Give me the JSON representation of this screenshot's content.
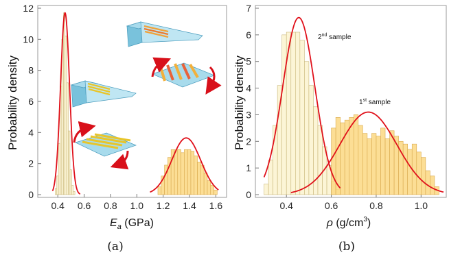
{
  "chart_data": [
    {
      "type": "bar",
      "panel_label": "(a)",
      "xlabel_main": "E",
      "xlabel_sub": "a",
      "xlabel_unit": " (GPa)",
      "ylabel": "Probability density",
      "xlim": [
        0.3,
        1.65
      ],
      "ylim": [
        0,
        12
      ],
      "xticks": [
        "0.4",
        "0.6",
        "0.8",
        "1.0",
        "1.2",
        "1.4",
        "1.6"
      ],
      "xtick_values": [
        0.4,
        0.6,
        0.8,
        1.0,
        1.2,
        1.4,
        1.6
      ],
      "yticks": [
        "0",
        "2",
        "4",
        "6",
        "8",
        "10",
        "12"
      ],
      "ytick_values": [
        0,
        2,
        4,
        6,
        8,
        10,
        12
      ],
      "series": [
        {
          "type": "histogram",
          "bin_width": 0.0125,
          "bin_start": [
            0.38,
            0.3925,
            0.405,
            0.4175,
            0.43,
            0.4425,
            0.455,
            0.4675,
            0.48,
            0.4925,
            0.505,
            0.5175
          ],
          "values": [
            0.4,
            1.2,
            3.3,
            7.0,
            10.0,
            11.7,
            10.2,
            7.2,
            4.1,
            1.6,
            0.6,
            0.2
          ],
          "fill": "#fbf3cf",
          "stroke": "#c9b77a"
        },
        {
          "type": "histogram",
          "bin_width": 0.025,
          "bin_start": [
            1.16,
            1.185,
            1.21,
            1.235,
            1.26,
            1.285,
            1.31,
            1.335,
            1.36,
            1.385,
            1.41,
            1.435,
            1.46,
            1.485,
            1.51,
            1.535,
            1.56,
            1.585
          ],
          "values": [
            0.5,
            1.2,
            1.9,
            2.4,
            2.9,
            2.9,
            2.9,
            2.7,
            2.9,
            2.9,
            2.8,
            2.5,
            2.1,
            1.9,
            1.4,
            0.9,
            0.6,
            0.3
          ],
          "fill": "#fcd883",
          "stroke": "#d9a94e"
        },
        {
          "type": "normal_curve",
          "mean": 0.455,
          "sd": 0.034,
          "peak": 11.7,
          "range": [
            0.36,
            0.57
          ],
          "color": "#e0101a"
        },
        {
          "type": "normal_curve",
          "mean": 1.375,
          "sd": 0.11,
          "peak": 3.65,
          "range": [
            1.1,
            1.62
          ],
          "color": "#e0101a"
        }
      ]
    },
    {
      "type": "bar",
      "panel_label": "(b)",
      "xlabel_main": "ρ",
      "xlabel_unit": " (g/cm",
      "xlabel_sup": "3",
      "xlabel_close": ")",
      "ylabel": "Probability density",
      "xlim": [
        0.28,
        1.1
      ],
      "ylim": [
        0,
        7
      ],
      "xticks": [
        "0.4",
        "0.6",
        "0.8",
        "1.0"
      ],
      "xtick_values": [
        0.4,
        0.6,
        0.8,
        1.0
      ],
      "yticks": [
        "0",
        "1",
        "2",
        "3",
        "4",
        "5",
        "6",
        "7"
      ],
      "ytick_values": [
        0,
        1,
        2,
        3,
        4,
        5,
        6,
        7
      ],
      "annotations": [
        {
          "text_pre": "2",
          "text_sup": "nd",
          "text_post": " sample"
        },
        {
          "text_pre": "1",
          "text_sup": "st",
          "text_post": " sample"
        }
      ],
      "series": [
        {
          "type": "histogram",
          "bin_width": 0.02,
          "bin_start": [
            0.3,
            0.32,
            0.34,
            0.36,
            0.38,
            0.4,
            0.42,
            0.44,
            0.46,
            0.48,
            0.5,
            0.52,
            0.54,
            0.56,
            0.58,
            0.6,
            0.62
          ],
          "values": [
            0.4,
            1.3,
            2.6,
            4.1,
            6.0,
            6.1,
            6.1,
            6.1,
            5.8,
            5.0,
            4.1,
            3.3,
            2.6,
            1.8,
            1.1,
            0.5,
            0.2
          ],
          "fill": "#fbf3cf",
          "stroke": "#c9b77a"
        },
        {
          "type": "histogram",
          "bin_width": 0.02,
          "bin_start": [
            0.6,
            0.62,
            0.64,
            0.66,
            0.68,
            0.7,
            0.72,
            0.74,
            0.76,
            0.78,
            0.8,
            0.82,
            0.84,
            0.86,
            0.88,
            0.9,
            0.92,
            0.94,
            0.96,
            0.98,
            1.0,
            1.02,
            1.04,
            1.06
          ],
          "values": [
            2.5,
            2.9,
            2.7,
            2.8,
            2.9,
            3.0,
            2.6,
            2.3,
            2.1,
            2.3,
            2.2,
            2.5,
            2.1,
            2.4,
            2.2,
            2.0,
            1.9,
            1.7,
            1.9,
            1.6,
            1.4,
            0.9,
            0.7,
            0.3
          ],
          "fill": "#fcd883",
          "stroke": "#d9a94e"
        },
        {
          "type": "normal_curve",
          "mean": 0.455,
          "sd": 0.072,
          "peak": 6.65,
          "range": [
            0.3,
            0.64
          ],
          "color": "#e0101a"
        },
        {
          "type": "normal_curve",
          "mean": 0.765,
          "sd": 0.127,
          "peak": 3.1,
          "range": [
            0.42,
            1.1
          ],
          "color": "#e0101a"
        }
      ]
    }
  ]
}
